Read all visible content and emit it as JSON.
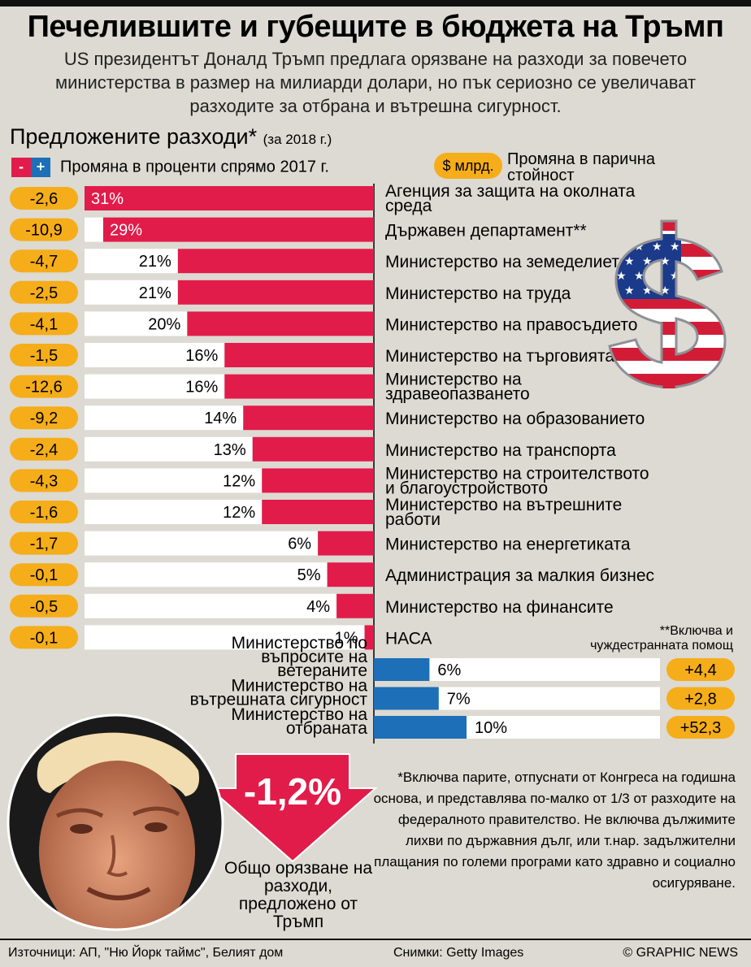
{
  "header": {
    "title": "Печелившите и губещите в бюджета на Тръмп",
    "subtitle": "US президентът Доналд Тръмп предлага орязване на разходи за повечето министерства в размер на милиарди долари, но пък сериозно се увеличават разходите за отбрана и вътрешна сигурност."
  },
  "section": {
    "title": "Предложените разходи*",
    "title_note": "(за 2018 г.)"
  },
  "legend": {
    "minus_symbol": "-",
    "plus_symbol": "+",
    "pct_label": "Промяна в проценти спрямо 2017 г.",
    "usd_symbol": "$ млрд.",
    "usd_label": "Промяна в парична стойност"
  },
  "colors": {
    "cut": "#e21c4a",
    "increase": "#1d6fb8",
    "pill": "#f6ad1a",
    "background": "#dcdad2"
  },
  "chart_data": {
    "type": "bar",
    "title": "Предложените разходи*",
    "cuts": [
      {
        "name": "Агенция за защита на околната среда",
        "pct": 31,
        "pct_label": "31%",
        "usd": "-2,6"
      },
      {
        "name": "Държавен департамент**",
        "pct": 29,
        "pct_label": "29%",
        "usd": "-10,9"
      },
      {
        "name": "Министерство на земеделието",
        "pct": 21,
        "pct_label": "21%",
        "usd": "-4,7"
      },
      {
        "name": "Министерство на труда",
        "pct": 21,
        "pct_label": "21%",
        "usd": "-2,5"
      },
      {
        "name": "Министерство на правосъдието",
        "pct": 20,
        "pct_label": "20%",
        "usd": "-4,1"
      },
      {
        "name": "Министерство на търговията",
        "pct": 16,
        "pct_label": "16%",
        "usd": "-1,5"
      },
      {
        "name": "Министерство на здравеопазването",
        "pct": 16,
        "pct_label": "16%",
        "usd": "-12,6"
      },
      {
        "name": "Министерство на образованието",
        "pct": 14,
        "pct_label": "14%",
        "usd": "-9,2"
      },
      {
        "name": "Министерство на транспорта",
        "pct": 13,
        "pct_label": "13%",
        "usd": "-2,4"
      },
      {
        "name": "Министерство на строителството и благоустройството",
        "pct": 12,
        "pct_label": "12%",
        "usd": "-4,3"
      },
      {
        "name": "Министерство на вътрешните работи",
        "pct": 12,
        "pct_label": "12%",
        "usd": "-1,6"
      },
      {
        "name": "Министерство на енергетиката",
        "pct": 6,
        "pct_label": "6%",
        "usd": "-1,7"
      },
      {
        "name": "Администрация за малкия бизнес",
        "pct": 5,
        "pct_label": "5%",
        "usd": "-0,1"
      },
      {
        "name": "Министерство на финансите",
        "pct": 4,
        "pct_label": "4%",
        "usd": "-0,5"
      },
      {
        "name": "НАСА",
        "pct": 1,
        "pct_label": "1%",
        "usd": "-0,1"
      }
    ],
    "increases": [
      {
        "name": "Министерство по въпросите на ветераните",
        "pct": 6,
        "pct_label": "6%",
        "usd": "+4,4"
      },
      {
        "name": "Министерство на вътрешната сигурност",
        "pct": 7,
        "pct_label": "7%",
        "usd": "+2,8"
      },
      {
        "name": "Министерство на отбраната",
        "pct": 10,
        "pct_label": "10%",
        "usd": "+52,3"
      }
    ],
    "pct_range": [
      0,
      31
    ]
  },
  "total": {
    "value": "-1,2%",
    "caption": "Общо орязване на разходи, предложено от Тръмп"
  },
  "notes": {
    "foreign_aid": "**Включва и чуждестранната помощ",
    "asterisk": "*Включва парите, отпуснати от Конгреса на годишна основа, и представлява по-малко от 1/3 от разходите на федералното правителство. Не включва дължимите лихви по държавния дълг, или т.нар. задължителни плащания по големи програми като здравно и социално осигуряване."
  },
  "footer": {
    "sources": "Източници: АП, \"Ню Йорк таймс\", Белият дом",
    "photos": "Снимки: Getty Images",
    "brand": "© GRAPHIC NEWS"
  },
  "images": {
    "portrait_icon": "portrait-photo",
    "dollar_icon": "us-flag-dollar-sign-icon"
  }
}
